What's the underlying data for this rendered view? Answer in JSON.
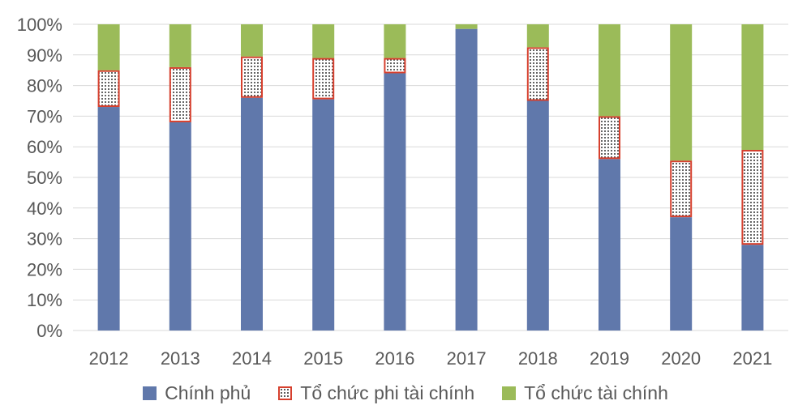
{
  "chart_data": {
    "type": "bar",
    "stacked": true,
    "categories": [
      "2012",
      "2013",
      "2014",
      "2015",
      "2016",
      "2017",
      "2018",
      "2019",
      "2020",
      "2021"
    ],
    "series": [
      {
        "name": "Chính phủ",
        "values": [
          73,
          68,
          76,
          75.5,
          84,
          98.5,
          75,
          56,
          37,
          28
        ]
      },
      {
        "name": "Tổ chức phi tài chính",
        "values": [
          12,
          18,
          13.5,
          13.5,
          5,
          0,
          17.5,
          14,
          18.5,
          31
        ]
      },
      {
        "name": "Tổ chức tài chính",
        "values": [
          15,
          14,
          10.5,
          11,
          11,
          1.5,
          7.5,
          30,
          44.5,
          41
        ]
      }
    ],
    "colors": {
      "gov": "#6078ab",
      "nonfin_border": "#d6402e",
      "nonfin_dot": "#333333",
      "fin": "#9bbb59",
      "grid": "#d9d9d9",
      "text": "#595959"
    },
    "ylim": [
      0,
      100
    ],
    "yticks": [
      "0%",
      "10%",
      "20%",
      "30%",
      "40%",
      "50%",
      "60%",
      "70%",
      "80%",
      "90%",
      "100%"
    ],
    "grid": true,
    "legend_position": "bottom",
    "title": "",
    "xlabel": "",
    "ylabel": ""
  },
  "legend": {
    "gov": "Chính phủ",
    "nonfin": "Tổ chức phi tài chính",
    "fin": "Tổ chức tài chính"
  }
}
